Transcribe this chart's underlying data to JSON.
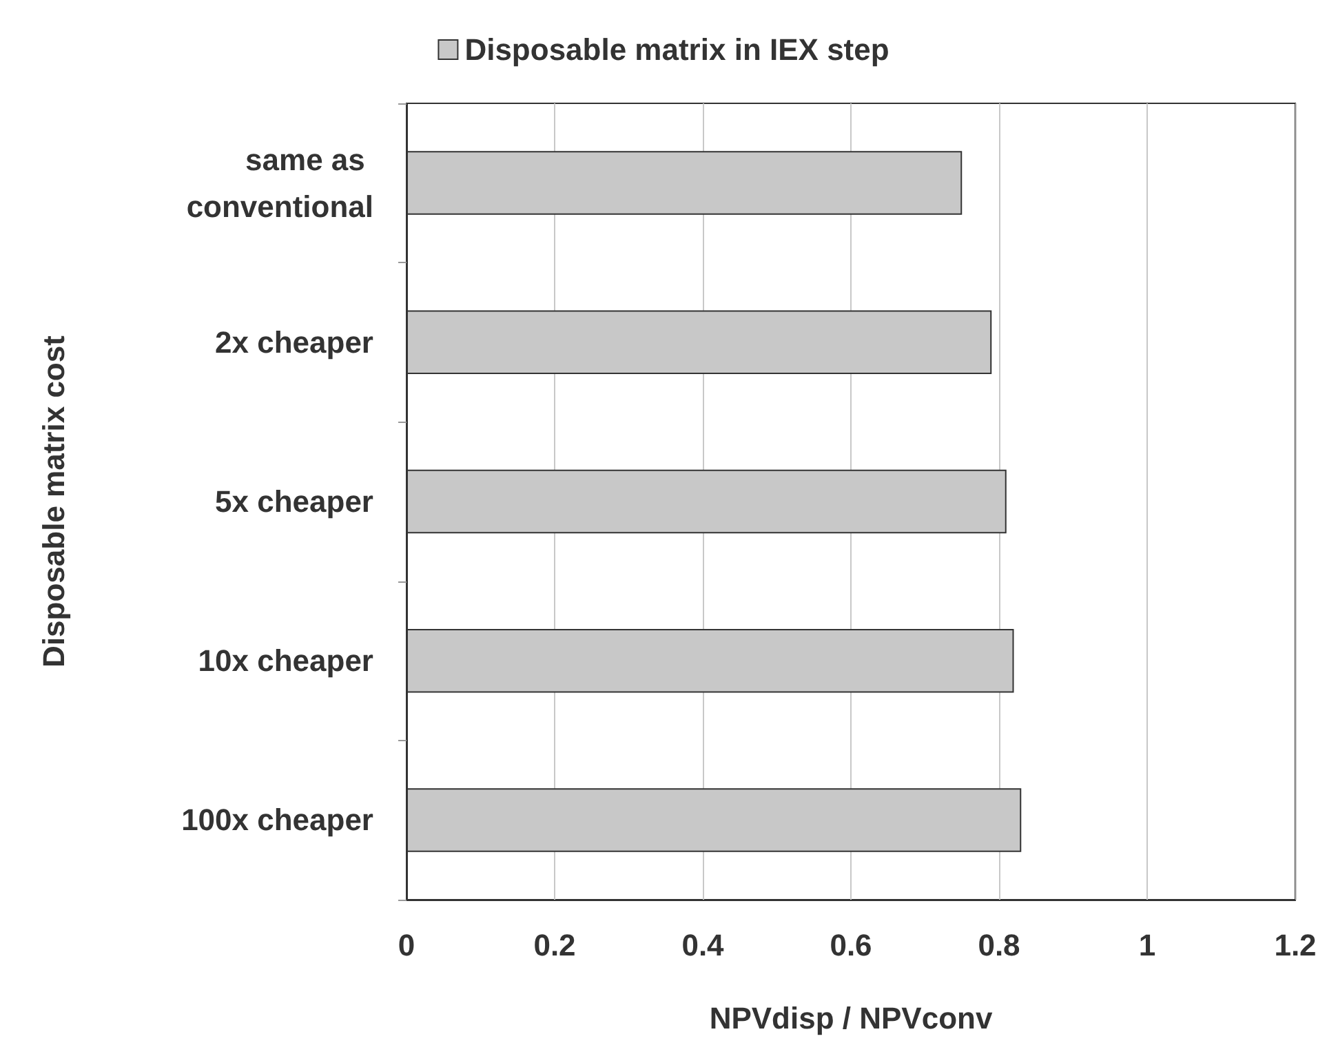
{
  "chart_data": {
    "type": "bar",
    "orientation": "horizontal",
    "xlabel": "NPVdisp / NPVconv",
    "ylabel": "Disposable matrix cost",
    "categories": [
      "same as conventional",
      "2x cheaper",
      "5x cheaper",
      "10x cheaper",
      "100x cheaper"
    ],
    "series": [
      {
        "name": "Disposable matrix in IEX step",
        "color": "#c8c8c8",
        "values": [
          0.75,
          0.79,
          0.81,
          0.82,
          0.83
        ]
      }
    ],
    "xlim": [
      0,
      1.2
    ],
    "xticks": [
      0,
      0.2,
      0.4,
      0.6,
      0.8,
      1,
      1.2
    ],
    "grid": "x",
    "legend": "top"
  }
}
